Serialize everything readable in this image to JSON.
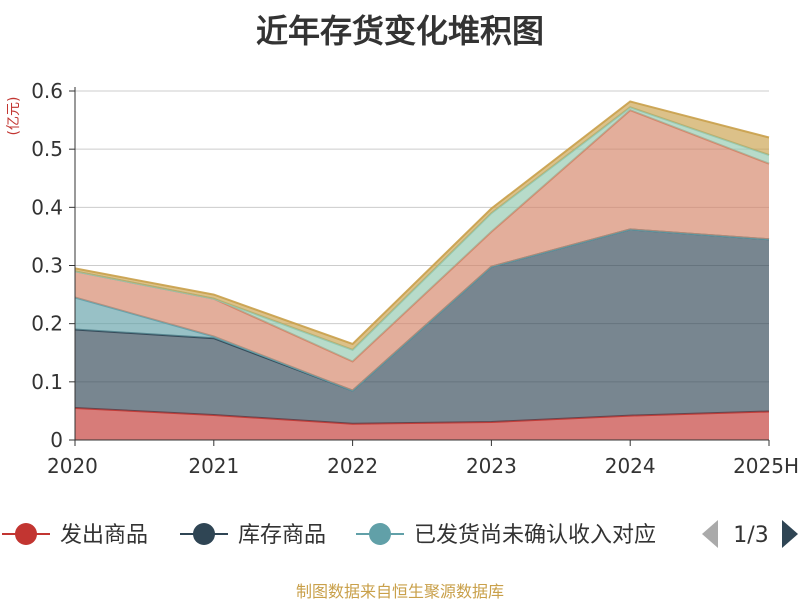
{
  "chart_data": {
    "type": "area",
    "stacked": true,
    "title": "近年存货变化堆积图",
    "ylabel": "(亿元)",
    "categories": [
      "2020",
      "2021",
      "2022",
      "2023",
      "2024",
      "2025H"
    ],
    "ylim": [
      0,
      0.6
    ],
    "yticks": [
      "0",
      "0.1",
      "0.2",
      "0.3",
      "0.4",
      "0.5",
      "0.6"
    ],
    "grid": true,
    "legend_position": "bottom",
    "series": [
      {
        "name": "发出商品",
        "color": "#c23531",
        "values": [
          0.055,
          0.043,
          0.028,
          0.031,
          0.042,
          0.049
        ]
      },
      {
        "name": "库存商品",
        "color": "#2f4554",
        "values": [
          0.135,
          0.132,
          0.057,
          0.267,
          0.32,
          0.296
        ]
      },
      {
        "name": "已发货尚未确认收入对应",
        "color": "#61a0a8",
        "values": [
          0.055,
          0.003,
          0.0,
          0.0,
          0.0,
          0.0
        ]
      },
      {
        "color": "#d48265",
        "values": [
          0.045,
          0.065,
          0.05,
          0.06,
          0.205,
          0.13
        ]
      },
      {
        "color": "#91c7ae",
        "values": [
          0.0,
          0.0,
          0.02,
          0.032,
          0.005,
          0.015
        ]
      },
      {
        "color": "#c9a04a",
        "values": [
          0.005,
          0.007,
          0.01,
          0.008,
          0.01,
          0.03
        ]
      }
    ]
  },
  "legend": {
    "items": [
      {
        "label": "发出商品",
        "color": "#c23531"
      },
      {
        "label": "库存商品",
        "color": "#2f4554"
      },
      {
        "label": "已发货尚未确认收入对应",
        "color": "#61a0a8"
      }
    ],
    "page_text": "1/3"
  },
  "footer": "制图数据来自恒生聚源数据库"
}
